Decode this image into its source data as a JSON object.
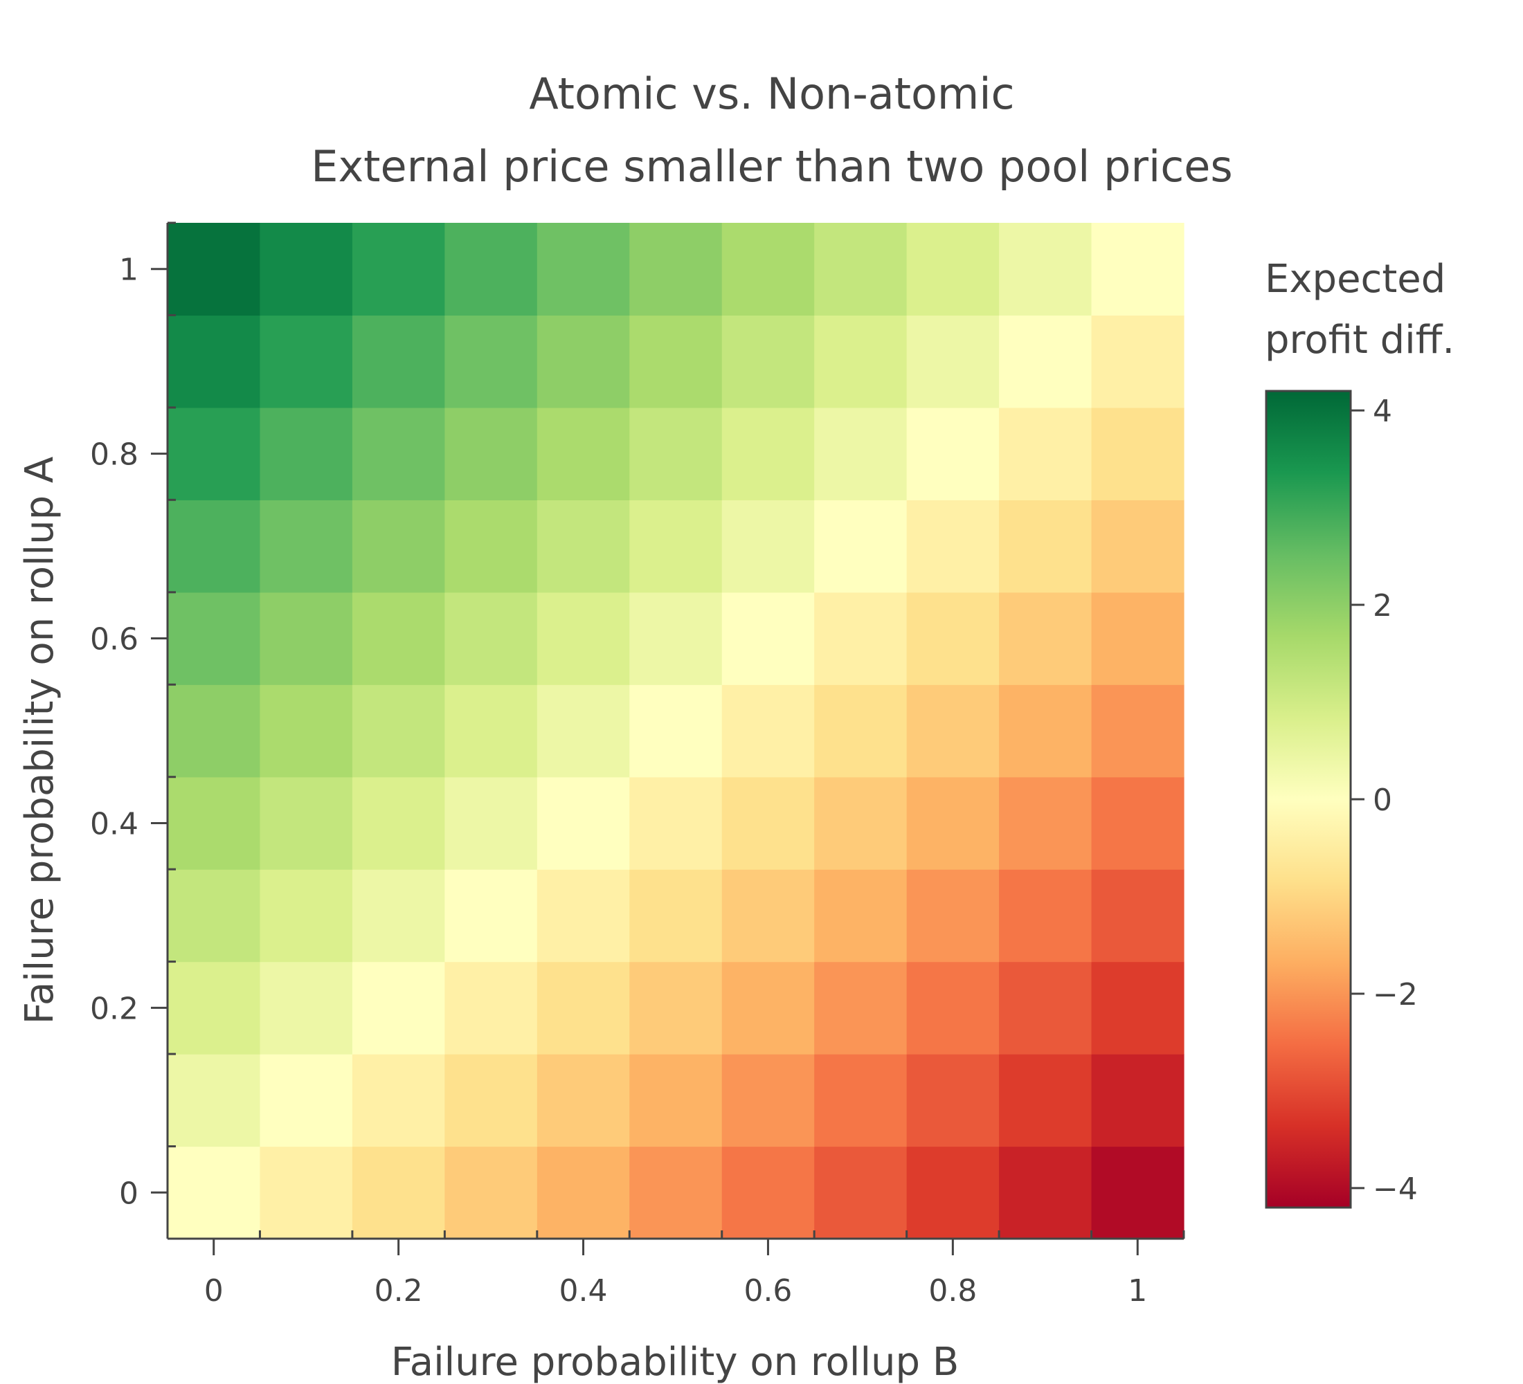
{
  "chart_data": {
    "type": "heatmap",
    "title": "Atomic vs. Non-atomic",
    "subtitle": "External price smaller than two pool prices",
    "xlabel": "Failure probability on rollup B",
    "ylabel": "Failure probability on rollup A",
    "x": [
      0,
      0.1,
      0.2,
      0.3,
      0.4,
      0.5,
      0.6,
      0.7,
      0.8,
      0.9,
      1
    ],
    "y": [
      0,
      0.1,
      0.2,
      0.3,
      0.4,
      0.5,
      0.6,
      0.7,
      0.8,
      0.9,
      1
    ],
    "x_ticks": [
      0,
      0.2,
      0.4,
      0.6,
      0.8,
      1
    ],
    "x_tick_labels": [
      "0",
      "0.2",
      "0.4",
      "0.6",
      "0.8",
      "1"
    ],
    "y_ticks": [
      0,
      0.2,
      0.4,
      0.6,
      0.8,
      1
    ],
    "y_tick_labels": [
      "0",
      "0.2",
      "0.4",
      "0.6",
      "0.8",
      "1"
    ],
    "xlim": [
      -0.05,
      1.05
    ],
    "ylim": [
      -0.05,
      1.05
    ],
    "z": [
      [
        0.0,
        -0.4,
        -0.8,
        -1.2,
        -1.6,
        -2.0,
        -2.4,
        -2.8,
        -3.2,
        -3.6,
        -4.0
      ],
      [
        0.4,
        0.0,
        -0.4,
        -0.8,
        -1.2,
        -1.6,
        -2.0,
        -2.4,
        -2.8,
        -3.2,
        -3.6
      ],
      [
        0.8,
        0.4,
        0.0,
        -0.4,
        -0.8,
        -1.2,
        -1.6,
        -2.0,
        -2.4,
        -2.8,
        -3.2
      ],
      [
        1.2,
        0.8,
        0.4,
        0.0,
        -0.4,
        -0.8,
        -1.2,
        -1.6,
        -2.0,
        -2.4,
        -2.8
      ],
      [
        1.6,
        1.2,
        0.8,
        0.4,
        0.0,
        -0.4,
        -0.8,
        -1.2,
        -1.6,
        -2.0,
        -2.4
      ],
      [
        2.0,
        1.6,
        1.2,
        0.8,
        0.4,
        0.0,
        -0.4,
        -0.8,
        -1.2,
        -1.6,
        -2.0
      ],
      [
        2.4,
        2.0,
        1.6,
        1.2,
        0.8,
        0.4,
        0.0,
        -0.4,
        -0.8,
        -1.2,
        -1.6
      ],
      [
        2.8,
        2.4,
        2.0,
        1.6,
        1.2,
        0.8,
        0.4,
        0.0,
        -0.4,
        -0.8,
        -1.2
      ],
      [
        3.2,
        2.8,
        2.4,
        2.0,
        1.6,
        1.2,
        0.8,
        0.4,
        0.0,
        -0.4,
        -0.8
      ],
      [
        3.6,
        3.2,
        2.8,
        2.4,
        2.0,
        1.6,
        1.2,
        0.8,
        0.4,
        0.0,
        -0.4
      ],
      [
        4.0,
        3.6,
        3.2,
        2.8,
        2.4,
        2.0,
        1.6,
        1.2,
        0.8,
        0.4,
        0.0
      ]
    ],
    "colorscale": "RdYlGn",
    "colorbar": {
      "title_lines": [
        "Expected",
        "profit diff."
      ],
      "range": [
        -4.2,
        4.2
      ],
      "ticks": [
        4,
        2,
        0,
        -2,
        -4
      ],
      "tick_labels": [
        "4",
        "2",
        "0",
        "−2",
        "−4"
      ]
    },
    "grid": false,
    "legend": "right"
  }
}
